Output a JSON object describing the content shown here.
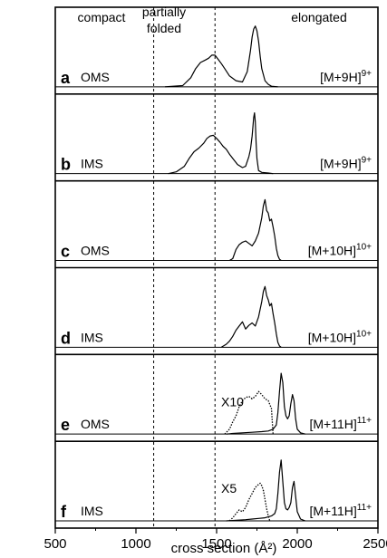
{
  "chart_data": {
    "type": "line",
    "xlabel": "cross section (Å²)",
    "xlim": [
      500,
      2500
    ],
    "xticks": [
      500,
      1000,
      1500,
      2000,
      2500
    ],
    "region_labels": [
      {
        "id": "compact",
        "lines": [
          "compact"
        ]
      },
      {
        "id": "partially",
        "lines": [
          "partially",
          "folded"
        ]
      },
      {
        "id": "elongated",
        "lines": [
          "elongated"
        ]
      }
    ],
    "divider_x": [
      1110,
      1490
    ],
    "panels": [
      {
        "letter": "a",
        "method": "OMS",
        "ion_base": "[M+9H]",
        "ion_charge": "9+",
        "series": [
          {
            "style": "solid",
            "x": [
              1180,
              1290,
              1340,
              1370,
              1400,
              1430,
              1450,
              1470,
              1490,
              1510,
              1530,
              1550,
              1580,
              1620,
              1660,
              1690,
              1710,
              1720,
              1730,
              1740,
              1750,
              1760,
              1770,
              1780,
              1800,
              1820,
              1840,
              1880
            ],
            "y": [
              0,
              0.02,
              0.15,
              0.3,
              0.4,
              0.44,
              0.47,
              0.52,
              0.52,
              0.45,
              0.38,
              0.3,
              0.18,
              0.1,
              0.08,
              0.25,
              0.6,
              0.82,
              0.95,
              1.0,
              0.92,
              0.75,
              0.5,
              0.3,
              0.1,
              0.04,
              0.01,
              0
            ]
          }
        ]
      },
      {
        "letter": "b",
        "method": "IMS",
        "ion_base": "[M+9H]",
        "ion_charge": "9+",
        "series": [
          {
            "style": "solid",
            "x": [
              1200,
              1250,
              1300,
              1330,
              1360,
              1390,
              1420,
              1440,
              1460,
              1480,
              1500,
              1520,
              1540,
              1560,
              1580,
              1600,
              1630,
              1660,
              1680,
              1700,
              1710,
              1720,
              1730,
              1735,
              1740,
              1745,
              1750,
              1760,
              1780,
              1820,
              1850
            ],
            "y": [
              0,
              0.03,
              0.12,
              0.25,
              0.36,
              0.42,
              0.5,
              0.58,
              0.62,
              0.63,
              0.58,
              0.52,
              0.45,
              0.4,
              0.32,
              0.25,
              0.15,
              0.1,
              0.12,
              0.28,
              0.4,
              0.62,
              0.92,
              1.0,
              0.85,
              0.5,
              0.25,
              0.05,
              0.02,
              0.01,
              0
            ]
          }
        ]
      },
      {
        "letter": "c",
        "method": "OMS",
        "ion_base": "[M+10H]",
        "ion_charge": "10+",
        "series": [
          {
            "style": "solid",
            "x": [
              1580,
              1600,
              1620,
              1640,
              1660,
              1680,
              1700,
              1720,
              1740,
              1760,
              1780,
              1790,
              1800,
              1810,
              1820,
              1830,
              1840,
              1850,
              1860,
              1870,
              1880,
              1890,
              1900
            ],
            "y": [
              0,
              0.03,
              0.18,
              0.26,
              0.3,
              0.32,
              0.28,
              0.24,
              0.32,
              0.45,
              0.7,
              0.9,
              1.0,
              0.82,
              0.78,
              0.65,
              0.68,
              0.55,
              0.4,
              0.2,
              0.08,
              0.02,
              0
            ]
          }
        ]
      },
      {
        "letter": "d",
        "method": "IMS",
        "ion_base": "[M+10H]",
        "ion_charge": "10+",
        "series": [
          {
            "style": "solid",
            "x": [
              1530,
              1560,
              1580,
              1600,
              1620,
              1640,
              1660,
              1680,
              1700,
              1720,
              1740,
              1760,
              1780,
              1790,
              1800,
              1810,
              1820,
              1830,
              1840,
              1850,
              1860,
              1870,
              1880,
              1890,
              1900
            ],
            "y": [
              0,
              0.05,
              0.1,
              0.18,
              0.28,
              0.35,
              0.42,
              0.3,
              0.36,
              0.4,
              0.35,
              0.5,
              0.75,
              0.92,
              1.0,
              0.85,
              0.78,
              0.68,
              0.72,
              0.55,
              0.4,
              0.22,
              0.08,
              0.02,
              0
            ]
          }
        ]
      },
      {
        "letter": "e",
        "method": "OMS",
        "ion_base": "[M+11H]",
        "ion_charge": "11+",
        "zoom_label": "X10",
        "series": [
          {
            "style": "dotted",
            "x": [
              1550,
              1580,
              1600,
              1620,
              1640,
              1660,
              1680,
              1700,
              1720,
              1740,
              1760,
              1780,
              1800,
              1820,
              1840,
              1850
            ],
            "y": [
              0,
              0.08,
              0.2,
              0.3,
              0.45,
              0.55,
              0.6,
              0.62,
              0.58,
              0.62,
              0.7,
              0.65,
              0.58,
              0.55,
              0.42,
              0.0
            ]
          },
          {
            "style": "solid",
            "x": [
              1560,
              1600,
              1660,
              1720,
              1780,
              1820,
              1850,
              1870,
              1880,
              1890,
              1900,
              1910,
              1920,
              1930,
              1940,
              1950,
              1960,
              1970,
              1980,
              1990,
              2000,
              2020,
              2050
            ],
            "y": [
              0,
              0.01,
              0.02,
              0.03,
              0.04,
              0.05,
              0.08,
              0.15,
              0.35,
              0.7,
              1.0,
              0.85,
              0.45,
              0.3,
              0.25,
              0.3,
              0.5,
              0.65,
              0.55,
              0.25,
              0.08,
              0.02,
              0
            ]
          }
        ]
      },
      {
        "letter": "f",
        "method": "IMS",
        "ion_base": "[M+11H]",
        "ion_charge": "11+",
        "zoom_label": "X5",
        "series": [
          {
            "style": "dotted",
            "x": [
              1580,
              1600,
              1620,
              1640,
              1660,
              1680,
              1700,
              1720,
              1740,
              1760,
              1770,
              1780,
              1790,
              1800,
              1810,
              1820,
              1830
            ],
            "y": [
              0,
              0.05,
              0.12,
              0.18,
              0.15,
              0.22,
              0.35,
              0.45,
              0.55,
              0.6,
              0.62,
              0.58,
              0.5,
              0.35,
              0.2,
              0.08,
              0
            ]
          },
          {
            "style": "solid",
            "x": [
              1560,
              1620,
              1680,
              1720,
              1760,
              1800,
              1840,
              1860,
              1870,
              1880,
              1890,
              1900,
              1910,
              1920,
              1930,
              1940,
              1950,
              1960,
              1970,
              1980,
              1990,
              2000,
              2020,
              2050
            ],
            "y": [
              0,
              0.01,
              0.02,
              0.03,
              0.04,
              0.05,
              0.08,
              0.12,
              0.2,
              0.45,
              0.8,
              1.0,
              0.65,
              0.3,
              0.2,
              0.18,
              0.22,
              0.3,
              0.55,
              0.65,
              0.4,
              0.15,
              0.03,
              0
            ]
          }
        ]
      }
    ]
  }
}
